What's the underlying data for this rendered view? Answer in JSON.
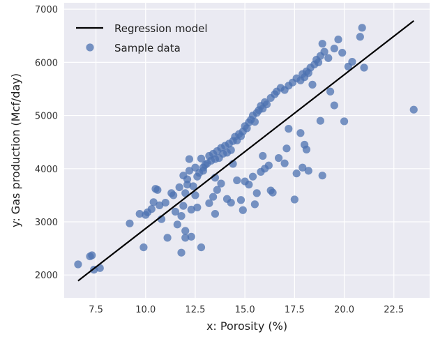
{
  "chart_data": {
    "type": "scatter",
    "title": "",
    "xlabel": "x: Porosity (%)",
    "ylabel": "y: Gas production (Mcf/day)",
    "xlim": [
      5.9,
      24.3
    ],
    "ylim": [
      1570,
      7120
    ],
    "xticks": [
      "7.5",
      "10.0",
      "12.5",
      "15.0",
      "17.5",
      "20.0",
      "22.5"
    ],
    "yticks": [
      "2000",
      "3000",
      "4000",
      "5000",
      "6000",
      "7000"
    ],
    "grid": true,
    "legend_position": "top-left",
    "colors": {
      "background": "#eaeaf2",
      "grid": "#ffffff",
      "points": "#4c72b0",
      "line": "#000000"
    },
    "series": [
      {
        "name": "Regression model",
        "kind": "line",
        "x": [
          6.6,
          23.5
        ],
        "y": [
          1890,
          6780
        ]
      },
      {
        "name": "Sample data",
        "kind": "scatter",
        "x": [
          6.6,
          7.2,
          7.3,
          7.4,
          7.7,
          9.2,
          9.7,
          9.9,
          10.0,
          10.1,
          10.3,
          10.4,
          10.6,
          10.7,
          10.8,
          11.0,
          11.1,
          11.3,
          11.4,
          11.6,
          11.7,
          11.8,
          11.9,
          11.9,
          12.0,
          12.0,
          12.1,
          12.1,
          12.2,
          12.3,
          12.3,
          12.4,
          12.5,
          12.6,
          12.7,
          12.8,
          12.9,
          13.0,
          13.1,
          13.2,
          13.3,
          13.4,
          13.5,
          13.5,
          13.6,
          13.7,
          13.8,
          13.9,
          14.0,
          14.1,
          14.2,
          14.3,
          14.4,
          14.5,
          14.6,
          14.7,
          14.8,
          14.9,
          15.0,
          15.1,
          15.2,
          15.3,
          15.4,
          15.5,
          15.6,
          15.7,
          15.8,
          15.9,
          16.0,
          16.1,
          16.3,
          16.5,
          16.6,
          16.8,
          17.0,
          17.2,
          17.4,
          17.6,
          17.8,
          17.9,
          18.0,
          18.1,
          18.2,
          18.3,
          18.5,
          18.6,
          18.7,
          18.8,
          18.9,
          19.0,
          19.2,
          19.5,
          19.7,
          19.9,
          20.2,
          20.4,
          20.8,
          20.9,
          12.2,
          12.5,
          13.2,
          13.6,
          14.1,
          14.6,
          15.0,
          15.4,
          15.8,
          16.2,
          16.7,
          17.1,
          17.6,
          17.9,
          18.0,
          18.1,
          18.8,
          19.5,
          12.0,
          12.8,
          13.5,
          14.3,
          14.9,
          15.6,
          16.3,
          17.0,
          17.5,
          18.2,
          18.9,
          20.0,
          21.0,
          23.5,
          11.8,
          12.6,
          13.8,
          14.8,
          15.5,
          16.4,
          17.2,
          11.5,
          10.5,
          12.9,
          14.4,
          15.2,
          16.0,
          17.8,
          19.3,
          13.4,
          15.9,
          18.4
        ],
        "y": [
          2200,
          2350,
          2370,
          2100,
          2130,
          2970,
          3150,
          2520,
          3130,
          3180,
          3240,
          3370,
          3600,
          3310,
          3050,
          3360,
          2700,
          3540,
          3500,
          2950,
          3650,
          2420,
          3870,
          3300,
          3540,
          2700,
          3800,
          3700,
          3960,
          3230,
          2720,
          3670,
          4020,
          3850,
          3920,
          4190,
          4020,
          4070,
          4100,
          4240,
          4150,
          4280,
          4180,
          3830,
          4330,
          4200,
          4390,
          4280,
          4430,
          4300,
          4470,
          4350,
          4520,
          4600,
          4530,
          4650,
          4610,
          4700,
          4800,
          4760,
          4870,
          4920,
          5000,
          4880,
          5050,
          5100,
          5180,
          5130,
          5250,
          5210,
          5330,
          5400,
          5450,
          5520,
          5480,
          5560,
          5620,
          5700,
          5660,
          5780,
          5720,
          5830,
          5800,
          5900,
          5960,
          6050,
          6000,
          6120,
          6350,
          6200,
          6080,
          6260,
          6430,
          6180,
          5920,
          6010,
          6480,
          6650,
          4180,
          3500,
          3350,
          3600,
          3430,
          3780,
          3760,
          3850,
          3940,
          4060,
          4200,
          4380,
          3910,
          4020,
          4450,
          4360,
          4900,
          5190,
          2830,
          2520,
          3150,
          3360,
          3220,
          3540,
          3590,
          4100,
          3420,
          3960,
          3870,
          4890,
          5900,
          5110,
          3110,
          3270,
          3720,
          3410,
          3330,
          3550,
          4750,
          3190,
          3620,
          3960,
          4090,
          3700,
          4000,
          4670,
          5450,
          3470,
          4240,
          5580
        ]
      }
    ]
  }
}
